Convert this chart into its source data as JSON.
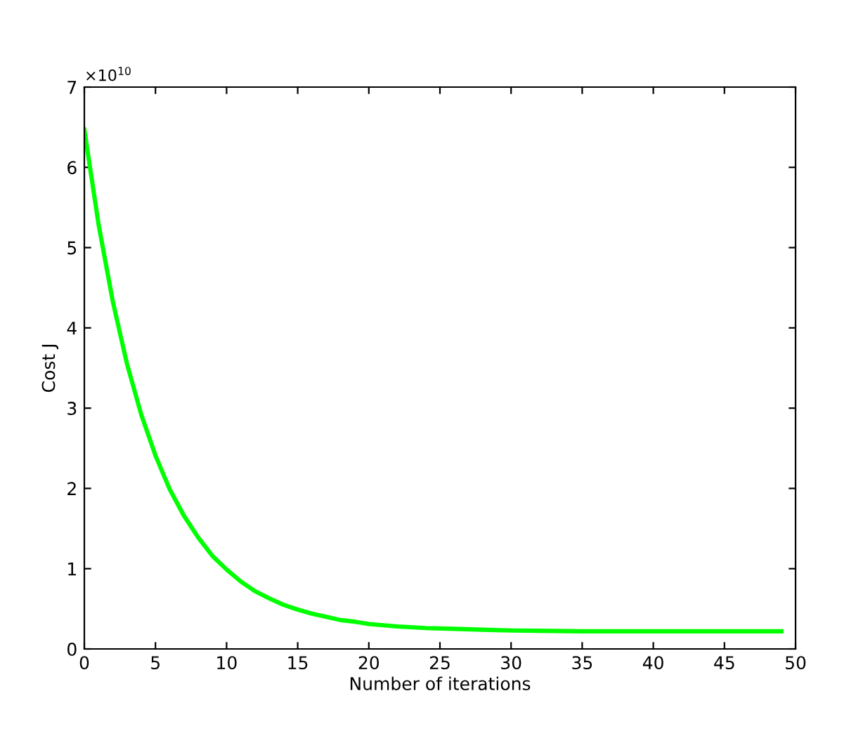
{
  "chart_data": {
    "type": "line",
    "xlabel": "Number of iterations",
    "ylabel": "Cost J",
    "annotations": [
      "×10$^{10}$"
    ],
    "x": [
      0,
      1,
      2,
      3,
      4,
      5,
      6,
      7,
      8,
      9,
      10,
      11,
      12,
      13,
      14,
      15,
      16,
      17,
      18,
      19,
      20,
      22,
      24,
      26,
      28,
      30,
      35,
      40,
      45,
      49
    ],
    "series": [
      {
        "color": "#00ff00",
        "values": [
          6.47,
          5.29,
          4.33,
          3.55,
          2.92,
          2.41,
          1.99,
          1.66,
          1.39,
          1.16,
          0.99,
          0.84,
          0.72,
          0.63,
          0.55,
          0.49,
          0.44,
          0.4,
          0.36,
          0.34,
          0.31,
          0.28,
          0.26,
          0.25,
          0.24,
          0.23,
          0.22,
          0.22,
          0.22,
          0.22
        ]
      }
    ],
    "xlim": [
      0,
      50
    ],
    "xticks": [
      0,
      5,
      10,
      15,
      20,
      25,
      30,
      35,
      40,
      45,
      50
    ],
    "ylim": [
      0,
      7
    ],
    "yticks": [
      0,
      1,
      2,
      3,
      4,
      5,
      6,
      7
    ],
    "grid": false,
    "legend": false,
    "marker": "none",
    "line_style": "solid"
  }
}
